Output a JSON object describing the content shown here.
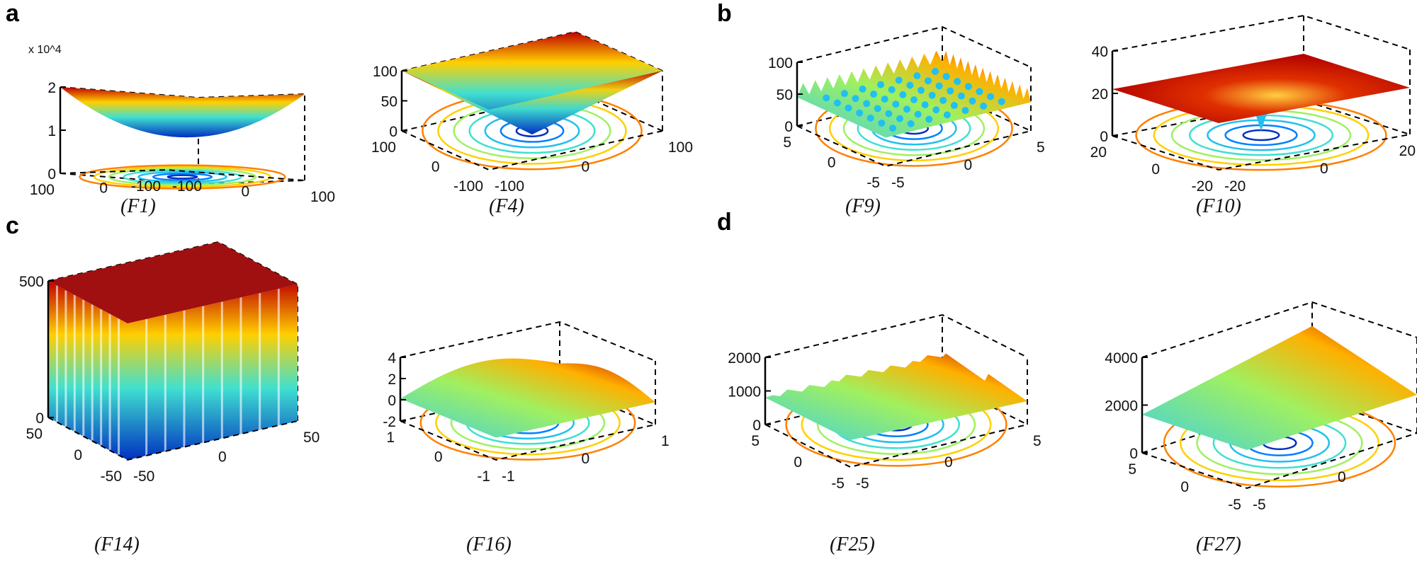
{
  "panel_labels": [
    "a",
    "b",
    "c",
    "d"
  ],
  "chart_data": [
    {
      "type": "surface",
      "title": "(F1)",
      "surface": "bowl",
      "zlim": [
        0,
        2
      ],
      "zticks": [
        "0",
        "1",
        "2"
      ],
      "zmultiplier": "x 10^4",
      "yticks": [
        "100",
        "0",
        "-100"
      ],
      "xticks": [
        "-100",
        "0",
        "100"
      ],
      "contours": true
    },
    {
      "type": "surface",
      "title": "(F4)",
      "surface": "pyramid",
      "zlim": [
        0,
        100
      ],
      "zticks": [
        "0",
        "50",
        "100"
      ],
      "yticks": [
        "100",
        "0",
        "-100"
      ],
      "xticks": [
        "-100",
        "0",
        "100"
      ],
      "contours": true
    },
    {
      "type": "surface",
      "title": "(F9)",
      "surface": "spiky",
      "zlim": [
        0,
        100
      ],
      "zticks": [
        "0",
        "50",
        "100"
      ],
      "yticks": [
        "5",
        "0",
        "-5"
      ],
      "xticks": [
        "-5",
        "0",
        "5"
      ],
      "contours": true
    },
    {
      "type": "surface",
      "title": "(F10)",
      "surface": "plate-dip",
      "zlim": [
        0,
        40
      ],
      "zticks": [
        "0",
        "20",
        "40"
      ],
      "yticks": [
        "20",
        "0",
        "-20"
      ],
      "xticks": [
        "-20",
        "0",
        "20"
      ],
      "contours": true
    },
    {
      "type": "surface",
      "title": "(F14)",
      "surface": "plate-wells",
      "zlim": [
        0,
        500
      ],
      "zticks": [
        "0",
        "500"
      ],
      "yticks": [
        "50",
        "0",
        "-50"
      ],
      "xticks": [
        "-50",
        "0",
        "50"
      ],
      "contours": false
    },
    {
      "type": "surface",
      "title": "(F16)",
      "surface": "saddle",
      "zlim": [
        -2,
        4
      ],
      "zticks": [
        "-2",
        "0",
        "2",
        "4"
      ],
      "yticks": [
        "1",
        "0",
        "-1"
      ],
      "xticks": [
        "-1",
        "0",
        "1"
      ],
      "contours": true
    },
    {
      "type": "surface",
      "title": "(F25)",
      "surface": "noisy",
      "zlim": [
        0,
        2000
      ],
      "zticks": [
        "0",
        "1000",
        "2000"
      ],
      "yticks": [
        "5",
        "0",
        "-5"
      ],
      "xticks": [
        "-5",
        "0",
        "5"
      ],
      "contours": true
    },
    {
      "type": "surface",
      "title": "(F27)",
      "surface": "ramp",
      "zlim": [
        0,
        4000
      ],
      "zticks": [
        "0",
        "2000",
        "4000"
      ],
      "yticks": [
        "5",
        "0",
        "-5"
      ],
      "xticks": [
        "-5",
        "0"
      ],
      "contours": true
    }
  ],
  "colors": {
    "high": "#c00000",
    "mid_high": "#ffd000",
    "mid": "#40e0d0",
    "low": "#0030c0",
    "axis": "#000000"
  }
}
